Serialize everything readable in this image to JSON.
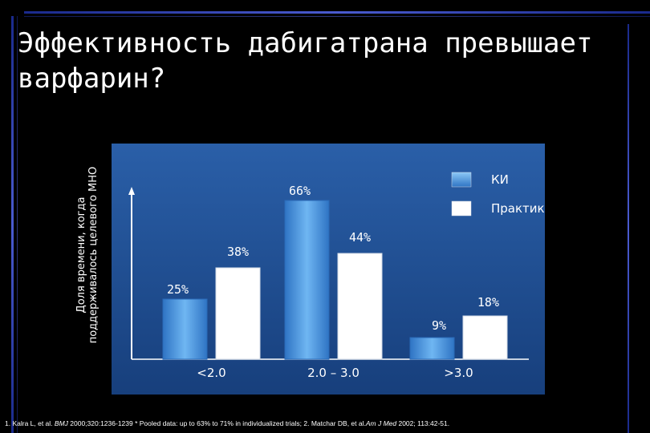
{
  "title": "Эффективность дабигатрана превышает варфарин?",
  "footnote": {
    "part1": "1. Kalra L, et al. ",
    "journal1": "BMJ",
    "part2": " 2000;320:1236-1239 * Pooled data: up to 63% to 71% in individualized trials; 2. Matchar DB, et al.",
    "journal2": "Am J Med",
    "part3": " 2002; 113:42-51."
  },
  "colors": {
    "panel": "#1f4f94",
    "series_ki": "#4a97e0",
    "series_practice": "#ffffff",
    "frame": "#3a4cc4"
  },
  "chart_data": {
    "type": "bar",
    "ylabel": "Доля времени, когда поддерживалось целевого МНО",
    "categories": [
      "<2.0",
      "2.0 – 3.0",
      ">3.0"
    ],
    "series": [
      {
        "name": "КИ",
        "values": [
          25,
          66,
          9
        ],
        "labels": [
          "25%",
          "66%",
          "9%"
        ]
      },
      {
        "name": "Практика",
        "values": [
          38,
          44,
          18
        ],
        "labels": [
          "38%",
          "44%",
          "18%"
        ]
      }
    ],
    "ylim": [
      0,
      80
    ],
    "legend_position": "top-right",
    "grid": false
  }
}
